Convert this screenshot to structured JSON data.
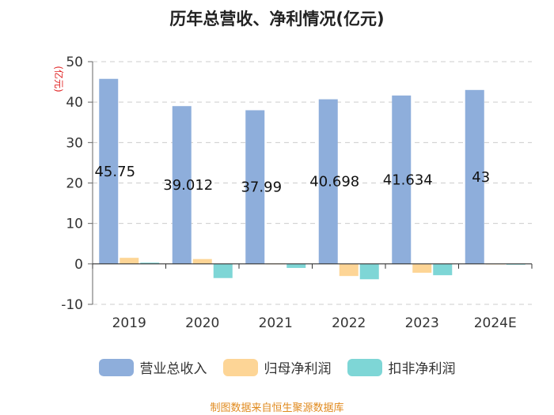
{
  "chart_data": {
    "type": "bar",
    "title": "历年总营收、净利情况(亿元)",
    "ylabel": "(亿元)",
    "xlabel": "",
    "categories": [
      "2019",
      "2020",
      "2021",
      "2022",
      "2023",
      "2024E"
    ],
    "ylim": [
      -10,
      50
    ],
    "yticks": [
      50,
      40,
      30,
      20,
      10,
      0,
      -10
    ],
    "grid": true,
    "legend_position": "bottom",
    "series": [
      {
        "name": "营业总收入",
        "color": "#8eaedb",
        "values": [
          45.75,
          39.012,
          37.99,
          40.698,
          41.634,
          43
        ],
        "labels": [
          "45.75",
          "39.012",
          "37.99",
          "40.698",
          "41.634",
          "43"
        ]
      },
      {
        "name": "归母净利润",
        "color": "#fdd596",
        "values": [
          1.5,
          1.2,
          0.1,
          -3.0,
          -2.2,
          0.05
        ]
      },
      {
        "name": "扣非净利润",
        "color": "#7ed6d6",
        "values": [
          0.3,
          -3.5,
          -1.0,
          -3.8,
          -2.8,
          -0.2
        ]
      }
    ]
  },
  "source": "制图数据来自恒生聚源数据库"
}
